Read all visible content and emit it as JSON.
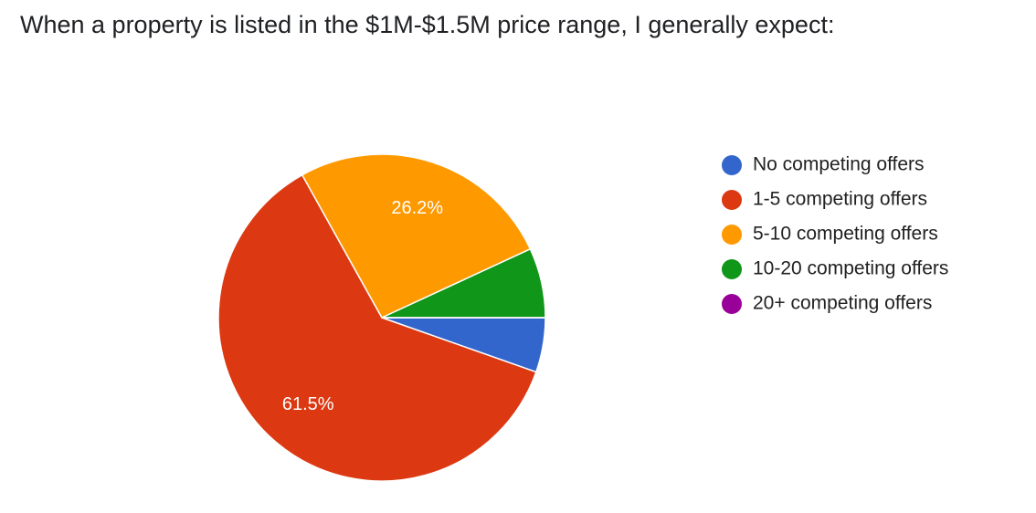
{
  "chart_data": {
    "type": "pie",
    "title": "When a property is listed in the $1M-$1.5M price range, I generally expect:",
    "categories": [
      "No competing offers",
      "1-5 competing offers",
      "5-10 competing offers",
      "10-20 competing offers",
      "20+ competing offers"
    ],
    "values": [
      5.4,
      61.5,
      26.2,
      6.9,
      0
    ],
    "value_labels": [
      null,
      "61.5%",
      "26.2%",
      null,
      null
    ],
    "colors": [
      "#3366cc",
      "#dc3912",
      "#ff9900",
      "#109618",
      "#990099"
    ],
    "legend": "right"
  }
}
